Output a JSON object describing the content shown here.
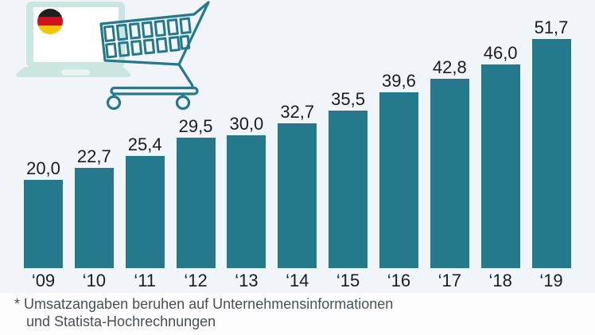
{
  "page": {
    "background": "#f1f4f8",
    "footer_background": "#fdfdfe"
  },
  "header_icon": {
    "description": "laptop with germany flag and shopping cart",
    "parts": [
      "laptop-icon",
      "germany-flag-icon",
      "shopping-cart-icon"
    ],
    "laptop_color": "#cbe6e1",
    "laptop_notch_color": "#e9f5f2",
    "laptop_screen_color": "#ffffff",
    "cart_outline_color": "#24798c",
    "flag_colors": {
      "black": "#211e1b",
      "red": "#d1101c",
      "gold": "#f2c500"
    }
  },
  "chart_data": {
    "type": "bar",
    "categories": [
      "‘09",
      "‘10",
      "‘11",
      "‘12",
      "‘13",
      "‘14",
      "‘15",
      "‘16",
      "‘17",
      "‘18",
      "‘19"
    ],
    "values": [
      20.0,
      22.7,
      25.4,
      29.5,
      30.0,
      32.7,
      35.5,
      39.6,
      42.8,
      46.0,
      51.7
    ],
    "value_labels": [
      "20,0",
      "22,7",
      "25,4",
      "29,5",
      "30,0",
      "32,7",
      "35,5",
      "39,6",
      "42,8",
      "46,0",
      "51,7"
    ],
    "title": "",
    "xlabel": "",
    "ylabel": "",
    "ylim": [
      0,
      55
    ],
    "grid": false,
    "legend": false,
    "value_label_position": "above-bars",
    "decimal_separator": ",",
    "bar_color": "#24798c",
    "label_color": "#1a1c21"
  },
  "footnote": {
    "line1": "* Umsatzangaben beruhen auf Unternehmensinformationen",
    "line2": "und Statista-Hochrechnungen",
    "color": "#4b4e55"
  }
}
